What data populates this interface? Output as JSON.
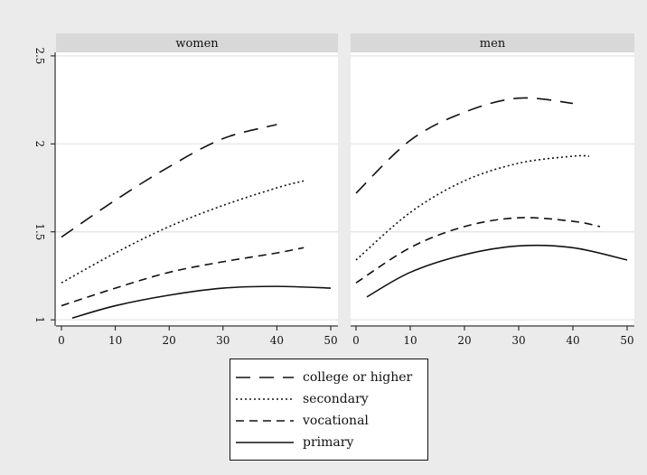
{
  "chart_data": {
    "type": "line",
    "panels": [
      {
        "title": "women",
        "series": [
          {
            "name": "college or higher",
            "x": [
              0,
              10,
              20,
              30,
              40
            ],
            "y": [
              1.47,
              1.68,
              1.87,
              2.03,
              2.11
            ]
          },
          {
            "name": "secondary",
            "x": [
              0,
              10,
              20,
              30,
              40,
              45
            ],
            "y": [
              1.21,
              1.38,
              1.53,
              1.65,
              1.75,
              1.79
            ]
          },
          {
            "name": "vocational",
            "x": [
              0,
              10,
              20,
              30,
              40,
              45
            ],
            "y": [
              1.08,
              1.18,
              1.27,
              1.33,
              1.38,
              1.41
            ]
          },
          {
            "name": "primary",
            "x": [
              2,
              10,
              20,
              30,
              40,
              50
            ],
            "y": [
              1.01,
              1.08,
              1.14,
              1.18,
              1.19,
              1.18
            ]
          }
        ]
      },
      {
        "title": "men",
        "series": [
          {
            "name": "college or higher",
            "x": [
              0,
              10,
              20,
              30,
              40
            ],
            "y": [
              1.72,
              2.02,
              2.18,
              2.26,
              2.23
            ]
          },
          {
            "name": "secondary",
            "x": [
              0,
              10,
              20,
              30,
              40,
              43
            ],
            "y": [
              1.34,
              1.61,
              1.79,
              1.89,
              1.93,
              1.93
            ]
          },
          {
            "name": "vocational",
            "x": [
              0,
              10,
              20,
              30,
              40,
              45
            ],
            "y": [
              1.21,
              1.41,
              1.53,
              1.58,
              1.56,
              1.53
            ]
          },
          {
            "name": "primary",
            "x": [
              2,
              10,
              20,
              30,
              40,
              50
            ],
            "y": [
              1.13,
              1.27,
              1.37,
              1.42,
              1.41,
              1.34
            ]
          }
        ]
      }
    ],
    "xlim": [
      0,
      50
    ],
    "ylim": [
      0.97,
      2.52
    ],
    "xticks": [
      0,
      10,
      20,
      30,
      40,
      50
    ],
    "yticks": [
      1,
      1.5,
      2,
      2.5
    ],
    "ytick_labels": [
      "1",
      "1.5",
      "2",
      "2.5"
    ],
    "grid": true,
    "legend": {
      "placement": "bottom",
      "entries": [
        {
          "label": "college or higher",
          "style": "longdash"
        },
        {
          "label": "secondary",
          "style": "dot"
        },
        {
          "label": "vocational",
          "style": "dash"
        },
        {
          "label": "primary",
          "style": "solid"
        }
      ]
    },
    "colors": {
      "background": "#ebebeb",
      "plot": "#ffffff",
      "strip": "#d8d8d8",
      "line": "#111111",
      "grid": "#e3e3e3"
    }
  }
}
